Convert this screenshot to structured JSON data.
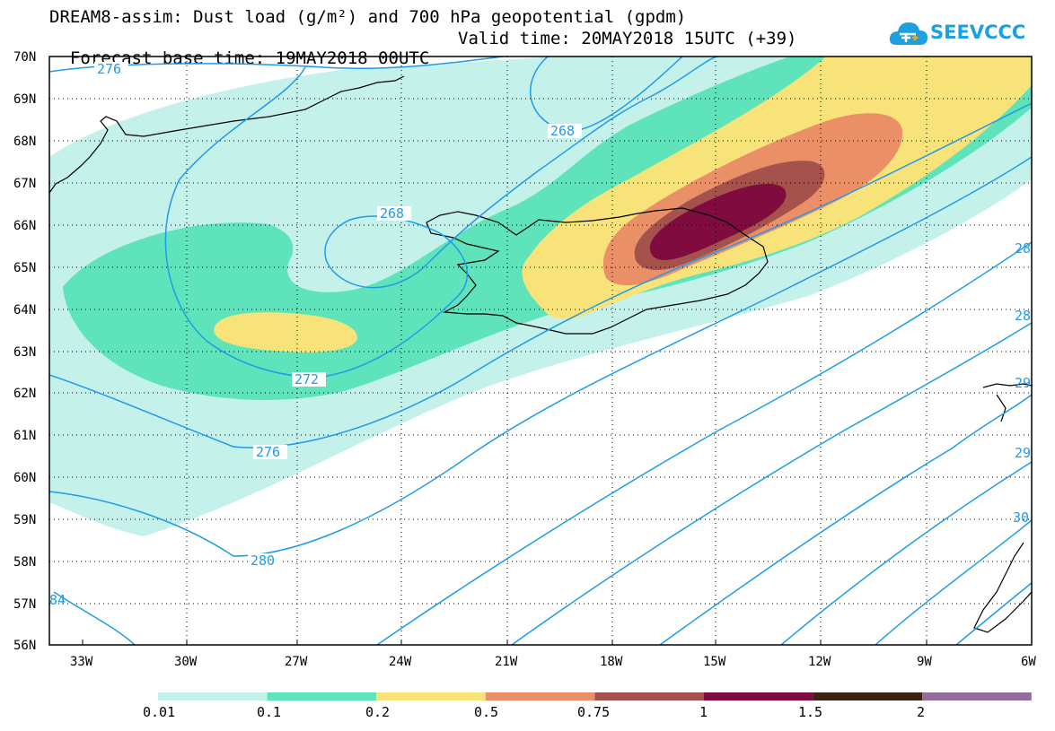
{
  "header": {
    "title_line1": "DREAM8-assim: Dust load (g/m²) and 700 hPa geopotential (gpdm)",
    "base_time": "Forecast base time: 19MAY2018 00UTC",
    "valid_time": "Valid time: 20MAY2018 15UTC (+39)"
  },
  "logo": {
    "text": "SEEVCCC",
    "icon": "cloud-icon",
    "color": "#1ca0e0"
  },
  "map": {
    "lat_labels": [
      "70N",
      "69N",
      "68N",
      "67N",
      "66N",
      "65N",
      "64N",
      "63N",
      "62N",
      "61N",
      "60N",
      "59N",
      "58N",
      "57N",
      "56N"
    ],
    "lon_labels": [
      "33W",
      "30W",
      "27W",
      "24W",
      "21W",
      "18W",
      "15W",
      "12W",
      "9W",
      "6W"
    ],
    "contour_labels": [
      "276",
      "268",
      "268",
      "272",
      "276",
      "280",
      "84",
      "28",
      "28",
      "29",
      "29",
      "30"
    ],
    "contour_color": "#1f9bea",
    "coast_color": "#000000"
  },
  "colorbar": {
    "labels": [
      "0.01",
      "0.1",
      "0.2",
      "0.5",
      "0.75",
      "1",
      "1.5",
      "2"
    ],
    "colors": [
      "#c4f2ea",
      "#5ee3bb",
      "#f7e37a",
      "#ea8f66",
      "#a5514c",
      "#800b3e",
      "#3b2414",
      "#936b9c"
    ]
  }
}
